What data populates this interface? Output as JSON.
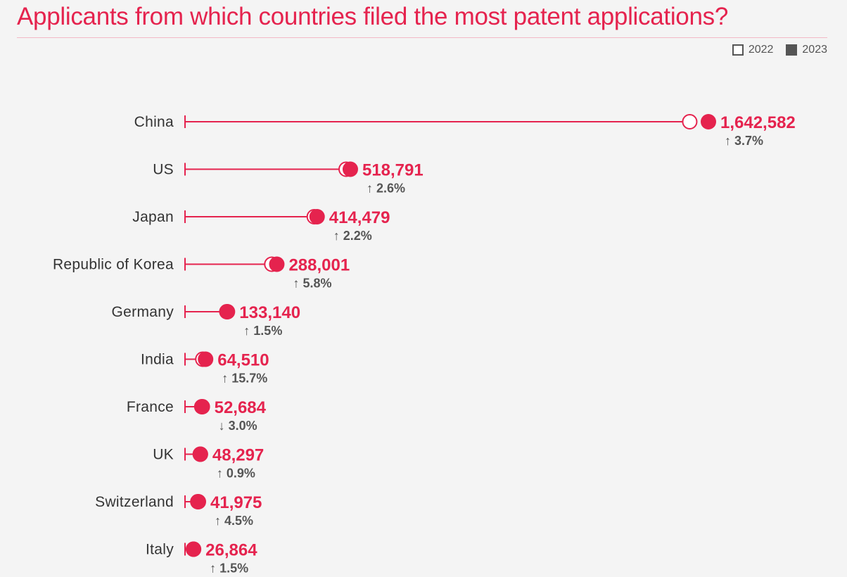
{
  "chart_data": {
    "type": "dot",
    "title": "Applicants from which countries filed the most patent applications?",
    "series": [
      {
        "name": "2022",
        "style": "hollow"
      },
      {
        "name": "2023",
        "style": "filled"
      }
    ],
    "xlim": [
      0,
      1700000
    ],
    "categories": [
      "China",
      "US",
      "Japan",
      "Republic of Korea",
      "Germany",
      "India",
      "France",
      "UK",
      "Switzerland",
      "Italy"
    ],
    "values_2023": [
      1642582,
      518791,
      414479,
      288001,
      133140,
      64510,
      52684,
      48297,
      41975,
      26864
    ],
    "values_2023_labels": [
      "1,642,582",
      "518,791",
      "414,479",
      "288,001",
      "133,140",
      "64,510",
      "52,684",
      "48,297",
      "41,975",
      "26,864"
    ],
    "change_labels": [
      "3.7%",
      "2.6%",
      "2.2%",
      "5.8%",
      "1.5%",
      "15.7%",
      "3.0%",
      "0.9%",
      "4.5%",
      "1.5%"
    ],
    "change_direction": [
      "up",
      "up",
      "up",
      "up",
      "up",
      "up",
      "down",
      "up",
      "up",
      "up"
    ],
    "legend_position": "top-right",
    "grid": false
  },
  "colors": {
    "accent": "#e5234e",
    "label": "#333333",
    "change": "#555555"
  },
  "arrows": {
    "up": "↑",
    "down": "↓"
  }
}
